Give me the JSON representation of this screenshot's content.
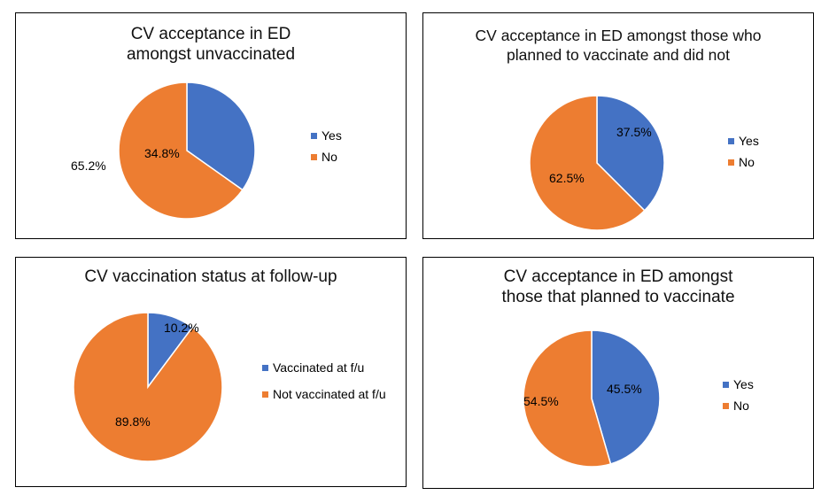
{
  "chart_data": [
    {
      "type": "pie",
      "title": "CV acceptance in ED amongst unvaccinated",
      "categories": [
        "Yes",
        "No"
      ],
      "values": [
        34.8,
        65.2
      ],
      "data_labels": [
        "34.8%",
        "65.2%"
      ],
      "colors": [
        "#4472C4",
        "#ED7D31"
      ],
      "legend": "right"
    },
    {
      "type": "pie",
      "title": "CV acceptance in ED amongst those who planned to vaccinate and did not",
      "categories": [
        "Yes",
        "No"
      ],
      "values": [
        37.5,
        62.5
      ],
      "data_labels": [
        "37.5%",
        "62.5%"
      ],
      "colors": [
        "#4472C4",
        "#ED7D31"
      ],
      "legend": "right"
    },
    {
      "type": "pie",
      "title": "CV vaccination status at follow-up",
      "categories": [
        "Vaccinated at f/u",
        "Not vaccinated at f/u"
      ],
      "values": [
        10.2,
        89.8
      ],
      "data_labels": [
        "10.2%",
        "89.8%"
      ],
      "colors": [
        "#4472C4",
        "#ED7D31"
      ],
      "legend": "right"
    },
    {
      "type": "pie",
      "title": "CV acceptance in ED amongst those that planned to vaccinate",
      "categories": [
        "Yes",
        "No"
      ],
      "values": [
        45.5,
        54.5
      ],
      "data_labels": [
        "45.5%",
        "54.5%"
      ],
      "colors": [
        "#4472C4",
        "#ED7D31"
      ],
      "legend": "right"
    }
  ]
}
